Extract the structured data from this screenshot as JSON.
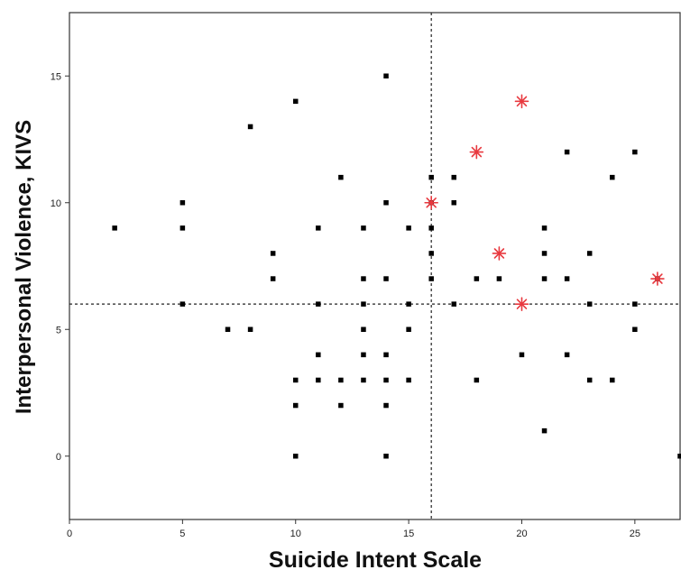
{
  "chart_data": {
    "type": "scatter",
    "title": "",
    "xlabel": "Suicide Intent Scale",
    "ylabel": "Interpersonal Violence, KIVS",
    "xlim": [
      0,
      27
    ],
    "ylim": [
      -2.5,
      17.5
    ],
    "x_ticks": [
      0,
      5,
      10,
      15,
      20,
      25
    ],
    "y_ticks": [
      0,
      5,
      10,
      15
    ],
    "x_tick_labels": [
      "0",
      "5",
      "10",
      "15",
      "20",
      "25"
    ],
    "y_tick_labels": [
      "0",
      "5",
      "10",
      "15"
    ],
    "reference_lines": {
      "vertical_x": 16,
      "horizontal_y": 6,
      "style": "dashed"
    },
    "grid": false,
    "legend": "none",
    "series": [
      {
        "marker": "square",
        "color": "#000000",
        "points": [
          [
            2,
            9
          ],
          [
            5,
            10
          ],
          [
            5,
            9
          ],
          [
            5,
            6
          ],
          [
            7,
            5
          ],
          [
            8,
            13
          ],
          [
            8,
            5
          ],
          [
            9,
            8
          ],
          [
            9,
            7
          ],
          [
            10,
            14
          ],
          [
            10,
            3
          ],
          [
            10,
            2
          ],
          [
            10,
            0
          ],
          [
            11,
            9
          ],
          [
            11,
            6
          ],
          [
            11,
            4
          ],
          [
            11,
            3
          ],
          [
            12,
            11
          ],
          [
            12,
            3
          ],
          [
            12,
            2
          ],
          [
            13,
            9
          ],
          [
            13,
            7
          ],
          [
            13,
            6
          ],
          [
            13,
            5
          ],
          [
            13,
            4
          ],
          [
            13,
            3
          ],
          [
            14,
            15
          ],
          [
            14,
            10
          ],
          [
            14,
            7
          ],
          [
            14,
            4
          ],
          [
            14,
            3
          ],
          [
            14,
            2
          ],
          [
            14,
            0
          ],
          [
            15,
            9
          ],
          [
            15,
            6
          ],
          [
            15,
            5
          ],
          [
            15,
            3
          ],
          [
            16,
            11
          ],
          [
            16,
            10
          ],
          [
            16,
            9
          ],
          [
            16,
            8
          ],
          [
            16,
            7
          ],
          [
            17,
            11
          ],
          [
            17,
            10
          ],
          [
            17,
            6
          ],
          [
            18,
            7
          ],
          [
            18,
            3
          ],
          [
            19,
            7
          ],
          [
            20,
            4
          ],
          [
            21,
            9
          ],
          [
            21,
            8
          ],
          [
            21,
            7
          ],
          [
            21,
            1
          ],
          [
            22,
            12
          ],
          [
            22,
            7
          ],
          [
            22,
            4
          ],
          [
            23,
            8
          ],
          [
            23,
            6
          ],
          [
            23,
            3
          ],
          [
            24,
            11
          ],
          [
            24,
            3
          ],
          [
            25,
            12
          ],
          [
            25,
            6
          ],
          [
            25,
            5
          ],
          [
            26,
            7
          ],
          [
            27,
            0
          ]
        ]
      },
      {
        "marker": "asterisk",
        "color": "#e8393f",
        "points": [
          [
            20,
            14
          ],
          [
            18,
            12
          ],
          [
            16,
            10
          ],
          [
            19,
            8
          ],
          [
            26,
            7
          ],
          [
            20,
            6
          ]
        ]
      }
    ]
  }
}
